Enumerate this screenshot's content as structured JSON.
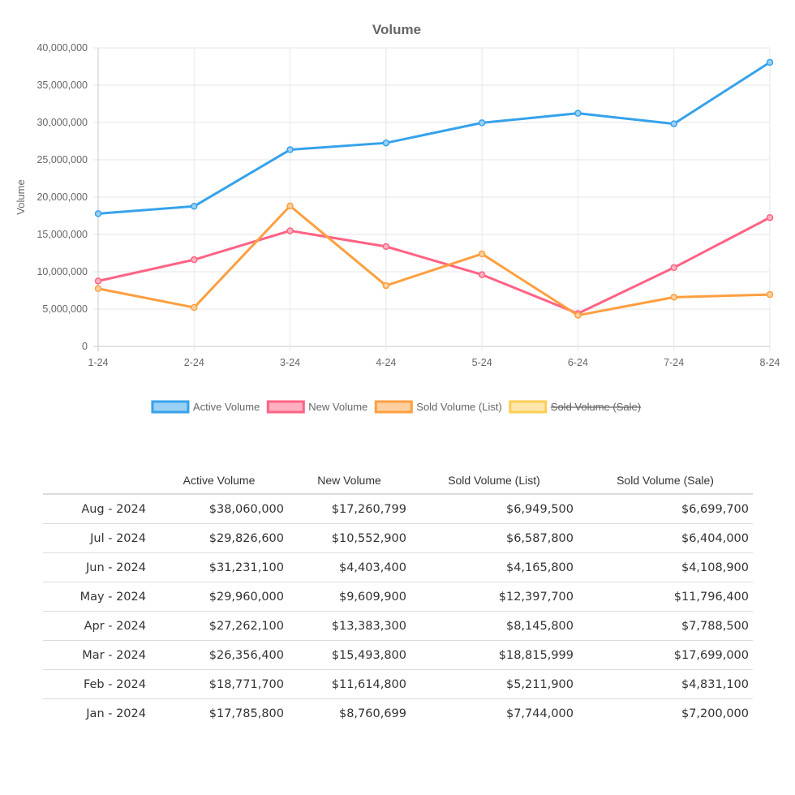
{
  "chart_data": {
    "type": "line",
    "title": "Volume",
    "xlabel": "",
    "ylabel": "Volume",
    "ylim": [
      0,
      40000000
    ],
    "yticks": [
      0,
      5000000,
      10000000,
      15000000,
      20000000,
      25000000,
      30000000,
      35000000,
      40000000
    ],
    "ytick_labels": [
      "0",
      "5,000,000",
      "10,000,000",
      "15,000,000",
      "20,000,000",
      "25,000,000",
      "30,000,000",
      "35,000,000",
      "40,000,000"
    ],
    "categories": [
      "1-24",
      "2-24",
      "3-24",
      "4-24",
      "5-24",
      "6-24",
      "7-24",
      "8-24"
    ],
    "grid": true,
    "legend_position": "bottom",
    "series": [
      {
        "name": "Active Volume",
        "color": "#36a2eb",
        "fill": "#9ad0f5",
        "hidden": false,
        "values": [
          17785800,
          18771700,
          26356400,
          27262100,
          29960000,
          31231100,
          29826600,
          38060000
        ]
      },
      {
        "name": "New Volume",
        "color": "#ff6384",
        "fill": "#ffb1c1",
        "hidden": false,
        "values": [
          8760699,
          11614800,
          15493800,
          13383300,
          9609900,
          4403400,
          10552900,
          17260799
        ]
      },
      {
        "name": "Sold Volume (List)",
        "color": "#ff9f40",
        "fill": "#ffcf9f",
        "hidden": false,
        "values": [
          7744000,
          5211900,
          18815999,
          8145800,
          12397700,
          4165800,
          6587800,
          6949500
        ]
      },
      {
        "name": "Sold Volume (Sale)",
        "color": "#ffcd56",
        "fill": "#ffe6aa",
        "hidden": true,
        "values": [
          7200000,
          4831100,
          17699000,
          7788500,
          11796400,
          4108900,
          6404000,
          6699700
        ]
      }
    ]
  },
  "table": {
    "headers": [
      "",
      "Active Volume",
      "New Volume",
      "Sold Volume (List)",
      "Sold Volume (Sale)"
    ],
    "rows": [
      [
        "Aug - 2024",
        "$38,060,000",
        "$17,260,799",
        "$6,949,500",
        "$6,699,700"
      ],
      [
        "Jul - 2024",
        "$29,826,600",
        "$10,552,900",
        "$6,587,800",
        "$6,404,000"
      ],
      [
        "Jun - 2024",
        "$31,231,100",
        "$4,403,400",
        "$4,165,800",
        "$4,108,900"
      ],
      [
        "May - 2024",
        "$29,960,000",
        "$9,609,900",
        "$12,397,700",
        "$11,796,400"
      ],
      [
        "Apr - 2024",
        "$27,262,100",
        "$13,383,300",
        "$8,145,800",
        "$7,788,500"
      ],
      [
        "Mar - 2024",
        "$26,356,400",
        "$15,493,800",
        "$18,815,999",
        "$17,699,000"
      ],
      [
        "Feb - 2024",
        "$18,771,700",
        "$11,614,800",
        "$5,211,900",
        "$4,831,100"
      ],
      [
        "Jan - 2024",
        "$17,785,800",
        "$8,760,699",
        "$7,744,000",
        "$7,200,000"
      ]
    ]
  }
}
